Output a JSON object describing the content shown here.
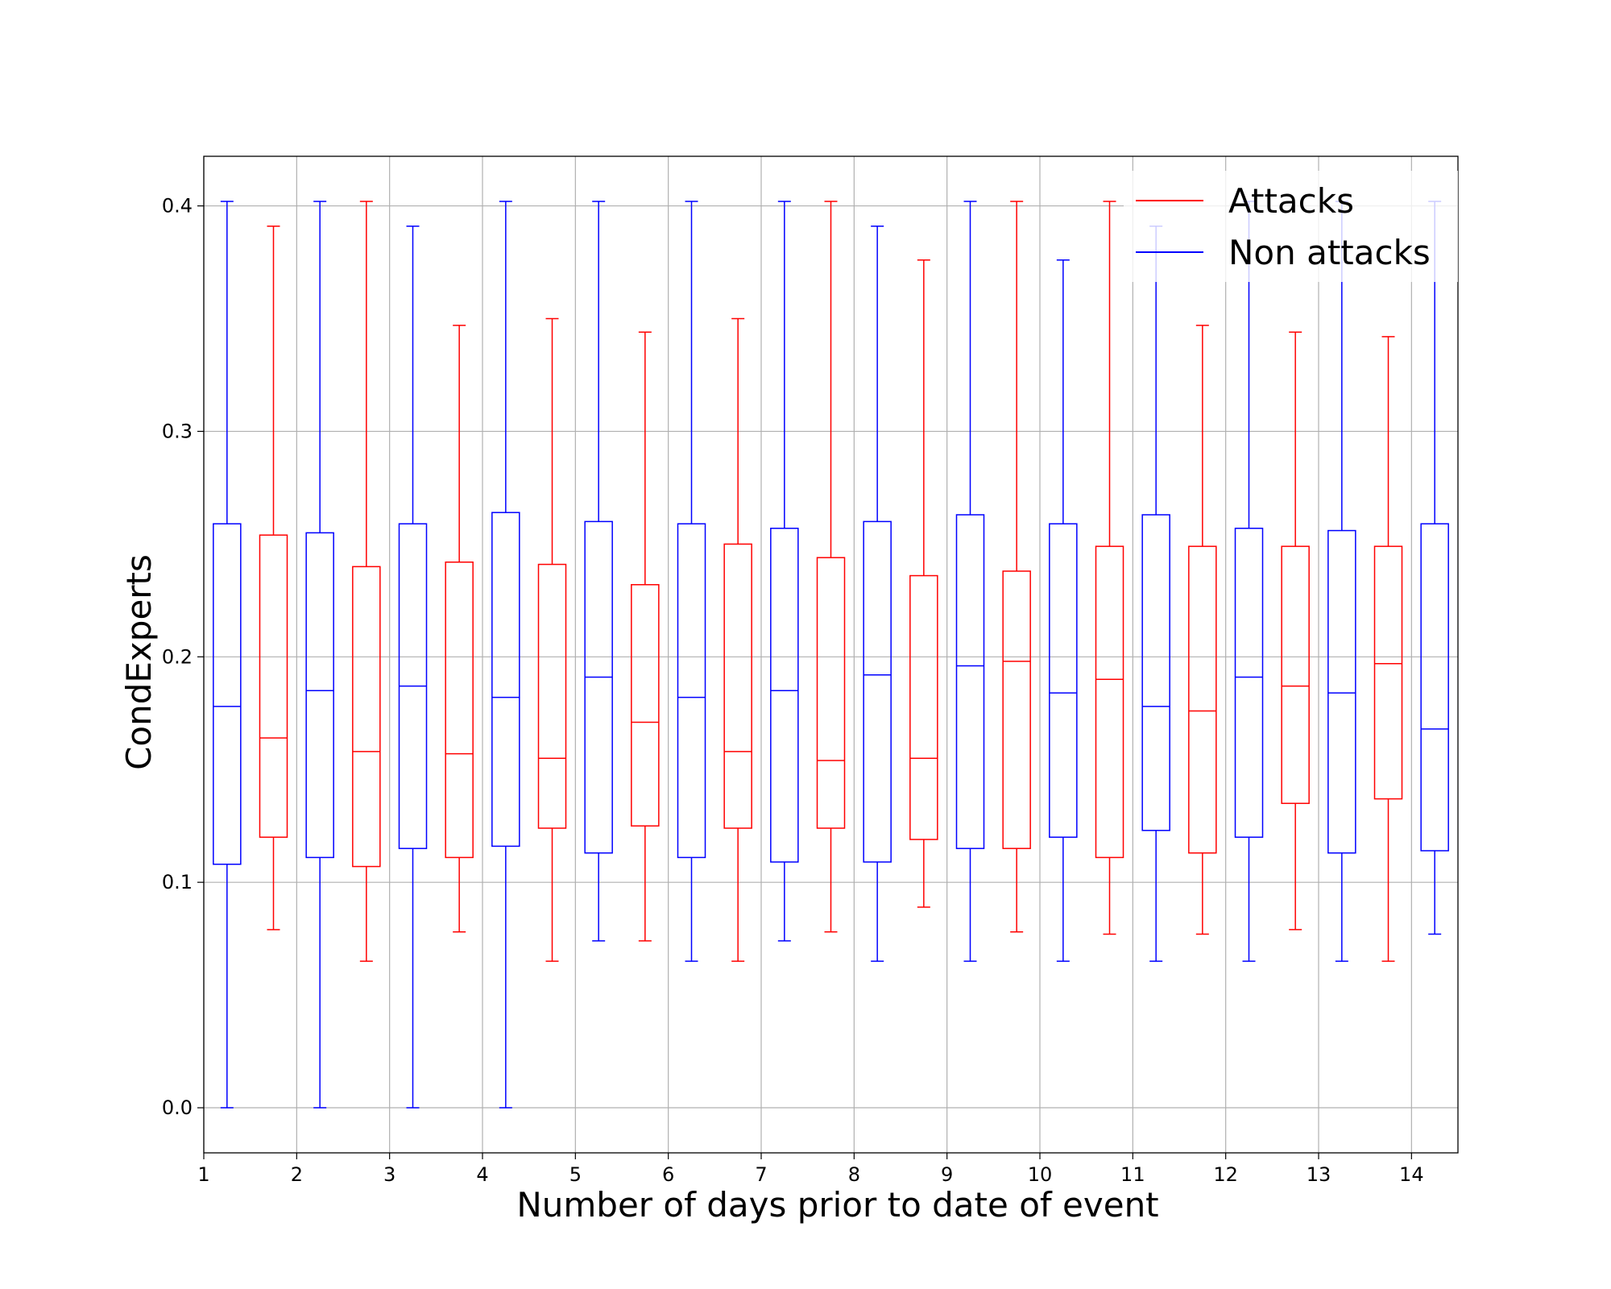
{
  "chart_data": {
    "type": "boxplot",
    "title": "",
    "xlabel": "Number of days prior to date of event",
    "ylabel": "CondExperts",
    "xlim": [
      1,
      14.5
    ],
    "ylim": [
      -0.02,
      0.422
    ],
    "x_ticks": [
      "1",
      "2",
      "3",
      "4",
      "5",
      "6",
      "7",
      "8",
      "9",
      "10",
      "11",
      "12",
      "13",
      "14"
    ],
    "y_ticks": [
      "0.0",
      "0.1",
      "0.2",
      "0.3",
      "0.4"
    ],
    "grid": true,
    "legend_position": "top-right",
    "series": [
      {
        "name": "Attacks",
        "color": "#ff0000",
        "boxes": [
          {
            "x": 1.75,
            "whislo": 0.079,
            "q1": 0.12,
            "med": 0.164,
            "q3": 0.254,
            "whishi": 0.391
          },
          {
            "x": 2.75,
            "whislo": 0.065,
            "q1": 0.107,
            "med": 0.158,
            "q3": 0.24,
            "whishi": 0.402
          },
          {
            "x": 3.75,
            "whislo": 0.078,
            "q1": 0.111,
            "med": 0.157,
            "q3": 0.242,
            "whishi": 0.347
          },
          {
            "x": 4.75,
            "whislo": 0.065,
            "q1": 0.124,
            "med": 0.155,
            "q3": 0.241,
            "whishi": 0.35
          },
          {
            "x": 5.75,
            "whislo": 0.074,
            "q1": 0.125,
            "med": 0.171,
            "q3": 0.232,
            "whishi": 0.344
          },
          {
            "x": 6.75,
            "whislo": 0.065,
            "q1": 0.124,
            "med": 0.158,
            "q3": 0.25,
            "whishi": 0.35
          },
          {
            "x": 7.75,
            "whislo": 0.078,
            "q1": 0.124,
            "med": 0.154,
            "q3": 0.244,
            "whishi": 0.402
          },
          {
            "x": 8.75,
            "whislo": 0.089,
            "q1": 0.119,
            "med": 0.155,
            "q3": 0.236,
            "whishi": 0.376
          },
          {
            "x": 9.75,
            "whislo": 0.078,
            "q1": 0.115,
            "med": 0.198,
            "q3": 0.238,
            "whishi": 0.402
          },
          {
            "x": 10.75,
            "whislo": 0.077,
            "q1": 0.111,
            "med": 0.19,
            "q3": 0.249,
            "whishi": 0.402
          },
          {
            "x": 11.75,
            "whislo": 0.077,
            "q1": 0.113,
            "med": 0.176,
            "q3": 0.249,
            "whishi": 0.347
          },
          {
            "x": 12.75,
            "whislo": 0.079,
            "q1": 0.135,
            "med": 0.187,
            "q3": 0.249,
            "whishi": 0.344
          },
          {
            "x": 13.75,
            "whislo": 0.065,
            "q1": 0.137,
            "med": 0.197,
            "q3": 0.249,
            "whishi": 0.342
          }
        ]
      },
      {
        "name": "Non attacks",
        "color": "#0000ff",
        "boxes": [
          {
            "x": 1.25,
            "whislo": 0.0,
            "q1": 0.108,
            "med": 0.178,
            "q3": 0.259,
            "whishi": 0.402
          },
          {
            "x": 2.25,
            "whislo": 0.0,
            "q1": 0.111,
            "med": 0.185,
            "q3": 0.255,
            "whishi": 0.402
          },
          {
            "x": 3.25,
            "whislo": 0.0,
            "q1": 0.115,
            "med": 0.187,
            "q3": 0.259,
            "whishi": 0.391
          },
          {
            "x": 4.25,
            "whislo": 0.0,
            "q1": 0.116,
            "med": 0.182,
            "q3": 0.264,
            "whishi": 0.402
          },
          {
            "x": 5.25,
            "whislo": 0.074,
            "q1": 0.113,
            "med": 0.191,
            "q3": 0.26,
            "whishi": 0.402
          },
          {
            "x": 6.25,
            "whislo": 0.065,
            "q1": 0.111,
            "med": 0.182,
            "q3": 0.259,
            "whishi": 0.402
          },
          {
            "x": 7.25,
            "whislo": 0.074,
            "q1": 0.109,
            "med": 0.185,
            "q3": 0.257,
            "whishi": 0.402
          },
          {
            "x": 8.25,
            "whislo": 0.065,
            "q1": 0.109,
            "med": 0.192,
            "q3": 0.26,
            "whishi": 0.391
          },
          {
            "x": 9.25,
            "whislo": 0.065,
            "q1": 0.115,
            "med": 0.196,
            "q3": 0.263,
            "whishi": 0.402
          },
          {
            "x": 10.25,
            "whislo": 0.065,
            "q1": 0.12,
            "med": 0.184,
            "q3": 0.259,
            "whishi": 0.376
          },
          {
            "x": 11.25,
            "whislo": 0.065,
            "q1": 0.123,
            "med": 0.178,
            "q3": 0.263,
            "whishi": 0.391
          },
          {
            "x": 12.25,
            "whislo": 0.065,
            "q1": 0.12,
            "med": 0.191,
            "q3": 0.257,
            "whishi": 0.402
          },
          {
            "x": 13.25,
            "whislo": 0.065,
            "q1": 0.113,
            "med": 0.184,
            "q3": 0.256,
            "whishi": 0.402
          },
          {
            "x": 14.25,
            "whislo": 0.077,
            "q1": 0.114,
            "med": 0.168,
            "q3": 0.259,
            "whishi": 0.402
          }
        ]
      }
    ]
  }
}
